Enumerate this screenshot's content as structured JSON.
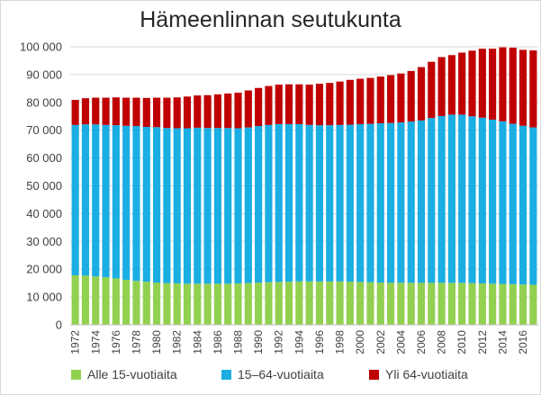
{
  "chart_data": {
    "type": "bar",
    "stacked": true,
    "title": "Hämeenlinnan seutukunta",
    "xlabel": "",
    "ylabel": "",
    "ylim": [
      0,
      100000
    ],
    "y_ticks": [
      "0",
      "10 000",
      "20 000",
      "30 000",
      "40 000",
      "50 000",
      "60 000",
      "70 000",
      "80 000",
      "90 000",
      "100 000"
    ],
    "categories": [
      "1972",
      "1973",
      "1974",
      "1975",
      "1976",
      "1977",
      "1978",
      "1979",
      "1980",
      "1981",
      "1982",
      "1983",
      "1984",
      "1985",
      "1986",
      "1987",
      "1988",
      "1989",
      "1990",
      "1991",
      "1992",
      "1993",
      "1994",
      "1995",
      "1996",
      "1997",
      "1998",
      "1999",
      "2000",
      "2001",
      "2002",
      "2003",
      "2004",
      "2005",
      "2006",
      "2007",
      "2008",
      "2009",
      "2010",
      "2011",
      "2012",
      "2013",
      "2014",
      "2015",
      "2016",
      "2017"
    ],
    "x_tick_labels_every": 2,
    "grid": true,
    "legend_position": "bottom",
    "series": [
      {
        "name": "Alle 15-vuotiaita",
        "color": "#92d050",
        "values": [
          17800,
          17700,
          17400,
          17100,
          16700,
          16200,
          15800,
          15500,
          15200,
          15000,
          14900,
          14800,
          14800,
          14800,
          14800,
          14800,
          14900,
          15000,
          15200,
          15300,
          15400,
          15500,
          15600,
          15600,
          15600,
          15600,
          15600,
          15500,
          15400,
          15300,
          15200,
          15100,
          15100,
          15100,
          15100,
          15100,
          15100,
          15100,
          15100,
          15000,
          14900,
          14800,
          14700,
          14600,
          14500,
          14400
        ]
      },
      {
        "name": "15–64-vuotiaita",
        "color": "#1aaee3",
        "values": [
          54100,
          54400,
          54700,
          54800,
          55100,
          55400,
          55700,
          55700,
          55900,
          55800,
          55800,
          55900,
          56100,
          56000,
          56000,
          56000,
          55800,
          56000,
          56300,
          56600,
          56800,
          56700,
          56600,
          56300,
          56200,
          56200,
          56300,
          56500,
          56800,
          57000,
          57300,
          57500,
          57700,
          58000,
          58400,
          59300,
          60000,
          60500,
          60500,
          60000,
          59600,
          59000,
          58500,
          57700,
          57100,
          56600
        ]
      },
      {
        "name": "Yli 64-vuotiaita",
        "color": "#c00000",
        "values": [
          9000,
          9400,
          9600,
          9800,
          10000,
          10100,
          10200,
          10400,
          10600,
          10900,
          11100,
          11400,
          11600,
          11800,
          12100,
          12400,
          12800,
          13300,
          13700,
          14000,
          14200,
          14300,
          14300,
          14500,
          14900,
          15200,
          15600,
          16100,
          16300,
          16500,
          16800,
          17200,
          17600,
          18200,
          19200,
          20200,
          21200,
          21400,
          22300,
          23600,
          24800,
          25500,
          26600,
          27400,
          27300,
          27700
        ]
      }
    ]
  }
}
